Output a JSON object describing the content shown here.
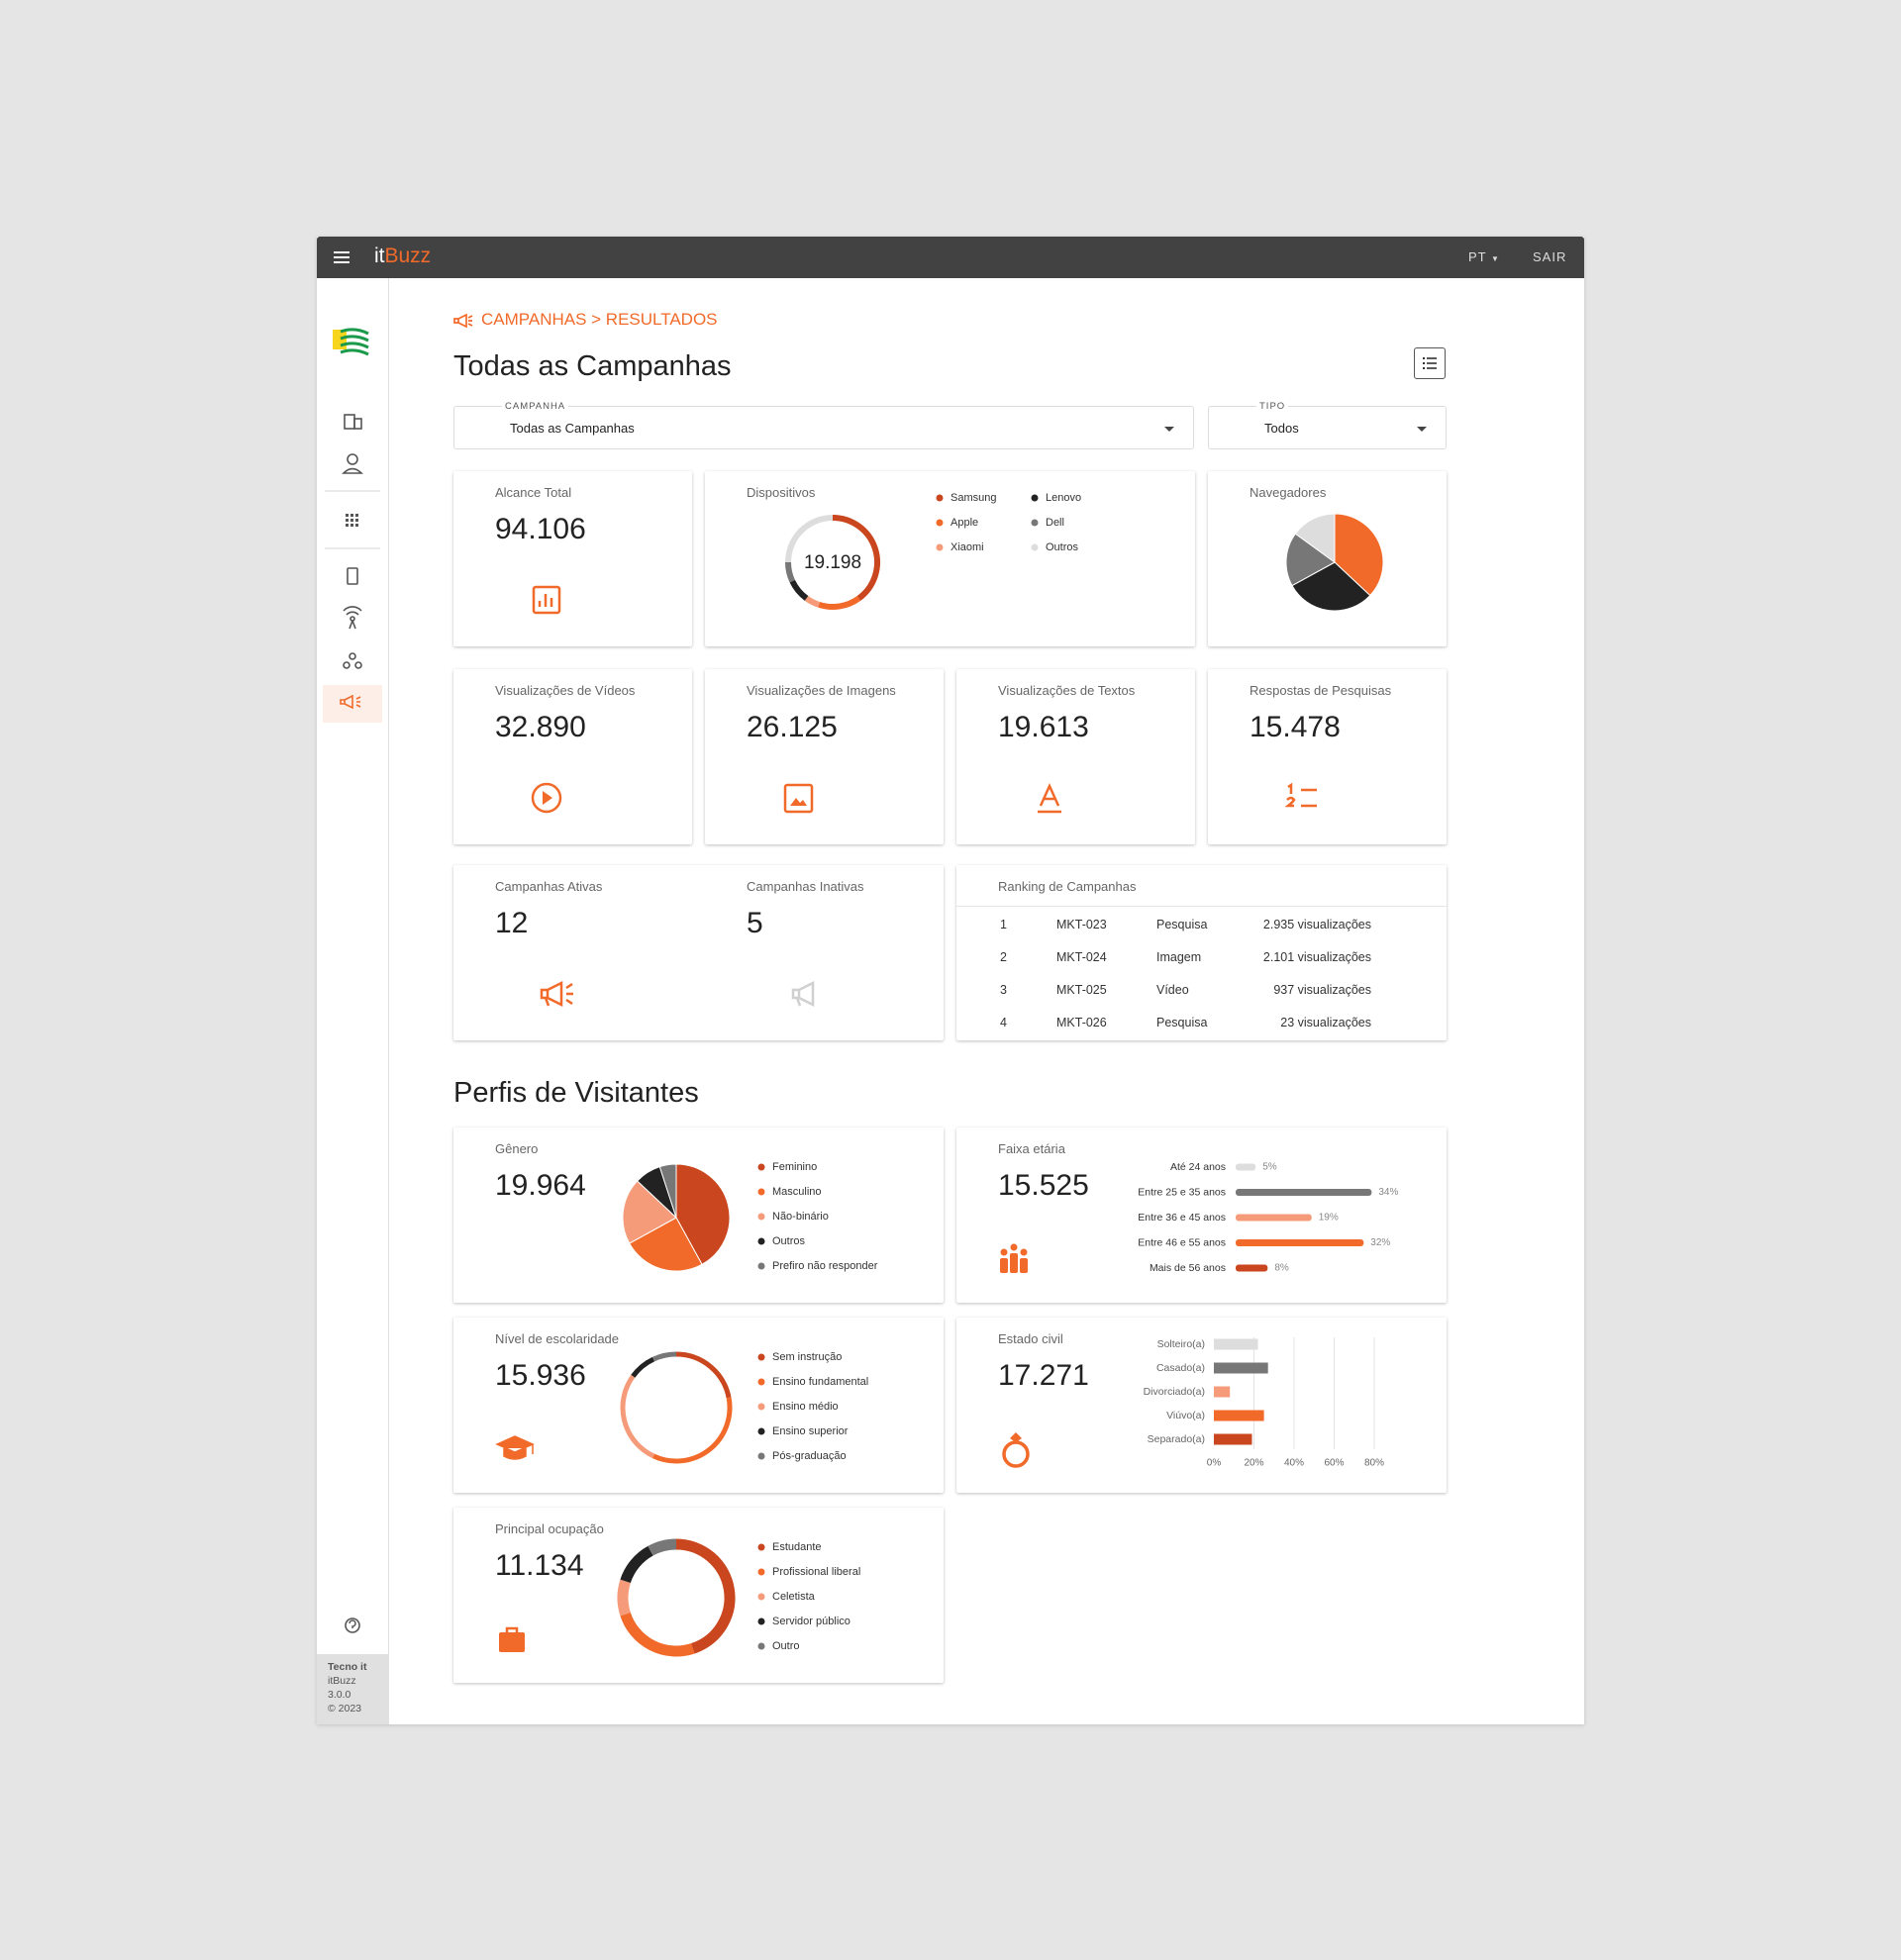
{
  "topbar": {
    "brand_prefix": "it",
    "brand_suffix": "Buzz",
    "language": "PT",
    "logout": "SAIR"
  },
  "sidebar_footer": [
    "Tecno it",
    "itBuzz",
    "3.0.0",
    "© 2023"
  ],
  "breadcrumb": "CAMPANHAS > RESULTADOS",
  "title": "Todas as Campanhas",
  "filters": [
    {
      "label": "CAMPANHA",
      "value": "Todas as Campanhas"
    },
    {
      "label": "TIPO",
      "value": "Todos"
    }
  ],
  "stats": [
    {
      "label": "Alcance Total",
      "value": "94.106"
    },
    {
      "label": "Visualizações de Vídeos",
      "value": "32.890"
    },
    {
      "label": "Visualizações de Imagens",
      "value": "26.125"
    },
    {
      "label": "Visualizações de Textos",
      "value": "19.613"
    },
    {
      "label": "Respostas de Pesquisas",
      "value": "15.478"
    }
  ],
  "campaigns": [
    {
      "label": "Campanhas Ativas",
      "value": "12"
    },
    {
      "label": "Campanhas Inativas",
      "value": "5"
    }
  ],
  "devices": {
    "label": "Dispositivos",
    "total": "19.198",
    "chart": {
      "type": "donut",
      "categories": [
        "Samsung",
        "Apple",
        "Xiaomi",
        "Lenovo",
        "Dell",
        "Outros"
      ],
      "values": [
        40,
        15,
        5,
        8,
        7,
        25
      ],
      "colors": [
        "#c9461e",
        "#f26a2a",
        "#f59b7a",
        "#222222",
        "#777777",
        "#dddddd"
      ]
    }
  },
  "browsers": {
    "label": "Navegadores",
    "chart": {
      "type": "pie",
      "values": [
        37,
        30,
        18,
        15
      ],
      "colors": [
        "#f26a2a",
        "#222222",
        "#777777",
        "#dddddd"
      ]
    }
  },
  "ranking": {
    "label": "Ranking de Campanhas",
    "rows": [
      [
        "1",
        "MKT-023",
        "Pesquisa",
        "2.935 visualizações"
      ],
      [
        "2",
        "MKT-024",
        "Imagem",
        "2.101 visualizações"
      ],
      [
        "3",
        "MKT-025",
        "Vídeo",
        "937 visualizações"
      ],
      [
        "4",
        "MKT-026",
        "Pesquisa",
        "23 visualizações"
      ]
    ]
  },
  "profiles_title": "Perfis de Visitantes",
  "gender": {
    "label": "Gênero",
    "total": "19.964",
    "chart": {
      "type": "pie",
      "categories": [
        "Feminino",
        "Masculino",
        "Não-binário",
        "Outros",
        "Prefiro não responder"
      ],
      "values": [
        42,
        25,
        20,
        8,
        5
      ],
      "colors": [
        "#c9461e",
        "#f26a2a",
        "#f59b7a",
        "#222222",
        "#777777"
      ]
    }
  },
  "age": {
    "label": "Faixa etária",
    "total": "15.525",
    "chart": {
      "type": "hbar",
      "categories": [
        "Até 24 anos",
        "Entre 25 e 35 anos",
        "Entre 36 e 45 anos",
        "Entre 46 e 55 anos",
        "Mais de 56 anos"
      ],
      "values": [
        5,
        34,
        19,
        32,
        8
      ],
      "value_labels": [
        "5%",
        "34%",
        "19%",
        "32%",
        "8%"
      ],
      "colors": [
        "#dddddd",
        "#777777",
        "#f59b7a",
        "#f26a2a",
        "#c9461e"
      ]
    }
  },
  "education": {
    "label": "Nível de escolaridade",
    "total": "15.936",
    "chart": {
      "type": "donut",
      "categories": [
        "Sem instrução",
        "Ensino fundamental",
        "Ensino médio",
        "Ensino superior",
        "Pós-graduação"
      ],
      "values": [
        22,
        35,
        28,
        8,
        7
      ],
      "colors": [
        "#c9461e",
        "#f26a2a",
        "#f59b7a",
        "#222222",
        "#777777"
      ]
    }
  },
  "marital": {
    "label": "Estado civil",
    "total": "17.271",
    "chart": {
      "type": "hbar",
      "categories": [
        "Solteiro(a)",
        "Casado(a)",
        "Divorciado(a)",
        "Viúvo(a)",
        "Separado(a)"
      ],
      "values": [
        22,
        27,
        8,
        25,
        19
      ],
      "xlim": [
        0,
        80
      ],
      "xticks": [
        {
          "value": 0,
          "label": "0%"
        },
        {
          "value": 20,
          "label": "20%"
        },
        {
          "value": 40,
          "label": "40%"
        },
        {
          "value": 60,
          "label": "60%"
        },
        {
          "value": 80,
          "label": "80%"
        }
      ],
      "colors": [
        "#dddddd",
        "#777777",
        "#f59b7a",
        "#f26a2a",
        "#c9461e"
      ]
    }
  },
  "occupation": {
    "label": "Principal ocupação",
    "total": "11.134",
    "chart": {
      "type": "donut",
      "categories": [
        "Estudante",
        "Profissional liberal",
        "Celetista",
        "Servidor público",
        "Outro"
      ],
      "values": [
        45,
        25,
        10,
        12,
        8
      ],
      "colors": [
        "#c9461e",
        "#f26a2a",
        "#f59b7a",
        "#222222",
        "#777777"
      ]
    }
  }
}
